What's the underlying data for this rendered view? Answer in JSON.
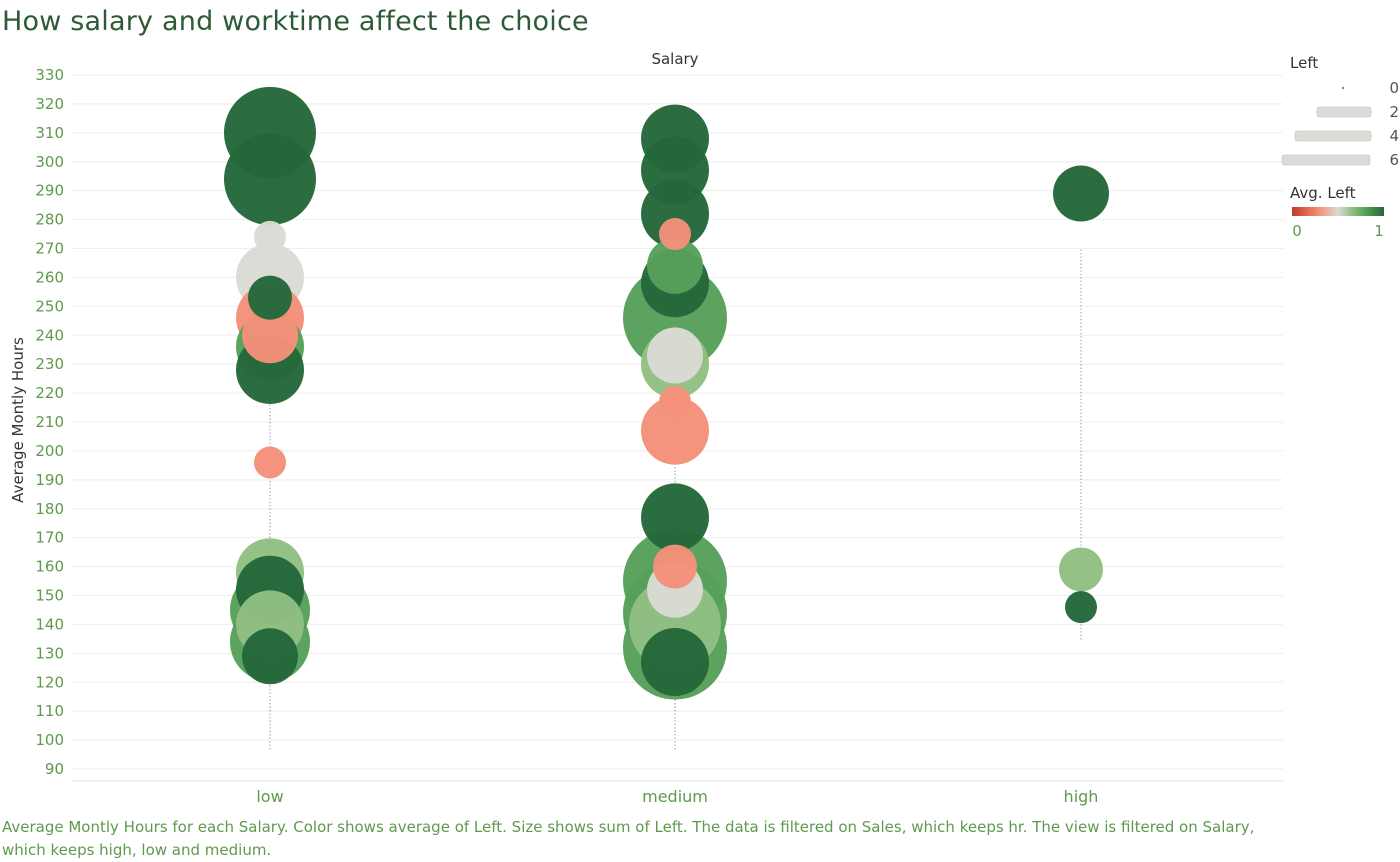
{
  "title": "How salary and worktime affect the choice",
  "footnote": "Average Montly Hours for each Salary.  Color shows average of Left.  Size shows sum of Left. The data is filtered on Sales, which keeps hr. The view is filtered on Salary, which keeps high, low and medium.",
  "colors": {
    "title": "#2e5a35",
    "tick": "#5e9a4e",
    "grid": "#eeeeee",
    "avg_left_0": "#c03a2b",
    "avg_left_low": "#f4917a",
    "avg_left_mid": "#d9dbd4",
    "avg_left_mid2": "#8fbf82",
    "avg_left_high": "#56a05a",
    "avg_left_1": "#24683a"
  },
  "legend": {
    "size_title": "Left",
    "size_items": [
      "0",
      "2",
      "4",
      "6"
    ],
    "color_title": "Avg. Left",
    "color_min": "0",
    "color_max": "1"
  },
  "chart_data": {
    "type": "scatter",
    "column_header": "Salary",
    "categories": [
      "low",
      "medium",
      "high"
    ],
    "ylabel": "Average Montly Hours",
    "ylim": [
      90,
      330
    ],
    "yticks": [
      90,
      100,
      110,
      120,
      130,
      140,
      150,
      160,
      170,
      180,
      190,
      200,
      210,
      220,
      230,
      240,
      250,
      260,
      270,
      280,
      290,
      300,
      310,
      320,
      330
    ],
    "grid": true,
    "color_field": "Avg. Left",
    "size_field": "Left (sum)",
    "points": [
      {
        "category": "low",
        "y": 310,
        "left_sum": 6,
        "avg_left": 1.0
      },
      {
        "category": "low",
        "y": 294,
        "left_sum": 6,
        "avg_left": 1.0
      },
      {
        "category": "low",
        "y": 274,
        "left_sum": 1,
        "avg_left": 0.5
      },
      {
        "category": "low",
        "y": 260,
        "left_sum": 4,
        "avg_left": 0.5
      },
      {
        "category": "low",
        "y": 253,
        "left_sum": 2,
        "avg_left": 1.0
      },
      {
        "category": "low",
        "y": 246,
        "left_sum": 4,
        "avg_left": 0.25
      },
      {
        "category": "low",
        "y": 240,
        "left_sum": 3,
        "avg_left": 0.3
      },
      {
        "category": "low",
        "y": 236,
        "left_sum": 4,
        "avg_left": 0.8
      },
      {
        "category": "low",
        "y": 228,
        "left_sum": 4,
        "avg_left": 1.0
      },
      {
        "category": "low",
        "y": 196,
        "left_sum": 1,
        "avg_left": 0.25
      },
      {
        "category": "low",
        "y": 158,
        "left_sum": 4,
        "avg_left": 0.67
      },
      {
        "category": "low",
        "y": 152,
        "left_sum": 4,
        "avg_left": 1.0
      },
      {
        "category": "low",
        "y": 145,
        "left_sum": 5,
        "avg_left": 0.8
      },
      {
        "category": "low",
        "y": 140,
        "left_sum": 4,
        "avg_left": 0.7
      },
      {
        "category": "low",
        "y": 134,
        "left_sum": 5,
        "avg_left": 0.8
      },
      {
        "category": "low",
        "y": 129,
        "left_sum": 3,
        "avg_left": 1.0
      },
      {
        "category": "medium",
        "y": 308,
        "left_sum": 4,
        "avg_left": 1.0
      },
      {
        "category": "medium",
        "y": 297,
        "left_sum": 4,
        "avg_left": 1.0
      },
      {
        "category": "medium",
        "y": 282,
        "left_sum": 4,
        "avg_left": 1.0
      },
      {
        "category": "medium",
        "y": 275,
        "left_sum": 1,
        "avg_left": 0.25
      },
      {
        "category": "medium",
        "y": 264,
        "left_sum": 3,
        "avg_left": 0.8
      },
      {
        "category": "medium",
        "y": 258,
        "left_sum": 4,
        "avg_left": 1.0
      },
      {
        "category": "medium",
        "y": 246,
        "left_sum": 7,
        "avg_left": 0.8
      },
      {
        "category": "medium",
        "y": 233,
        "left_sum": 3,
        "avg_left": 0.5
      },
      {
        "category": "medium",
        "y": 230,
        "left_sum": 4,
        "avg_left": 0.67
      },
      {
        "category": "medium",
        "y": 217,
        "left_sum": 1,
        "avg_left": 0.25
      },
      {
        "category": "medium",
        "y": 207,
        "left_sum": 4,
        "avg_left": 0.25
      },
      {
        "category": "medium",
        "y": 177,
        "left_sum": 4,
        "avg_left": 1.0
      },
      {
        "category": "medium",
        "y": 160,
        "left_sum": 2,
        "avg_left": 0.25
      },
      {
        "category": "medium",
        "y": 155,
        "left_sum": 7,
        "avg_left": 0.8
      },
      {
        "category": "medium",
        "y": 152,
        "left_sum": 3,
        "avg_left": 0.5
      },
      {
        "category": "medium",
        "y": 144,
        "left_sum": 7,
        "avg_left": 0.8
      },
      {
        "category": "medium",
        "y": 140,
        "left_sum": 6,
        "avg_left": 0.7
      },
      {
        "category": "medium",
        "y": 132,
        "left_sum": 7,
        "avg_left": 0.8
      },
      {
        "category": "medium",
        "y": 127,
        "left_sum": 4,
        "avg_left": 1.0
      },
      {
        "category": "high",
        "y": 289,
        "left_sum": 3,
        "avg_left": 1.0
      },
      {
        "category": "high",
        "y": 159,
        "left_sum": 2,
        "avg_left": 0.7
      },
      {
        "category": "high",
        "y": 146,
        "left_sum": 1,
        "avg_left": 1.0
      }
    ]
  }
}
